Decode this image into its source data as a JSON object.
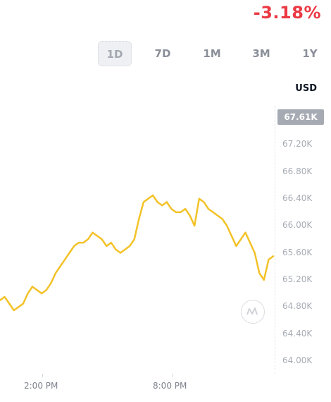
{
  "change_percent": "-3.18%",
  "colors": {
    "negative": "#ea3943",
    "line": "#f3c227",
    "muted": "#a7acb4"
  },
  "tabs": [
    {
      "label": "1D",
      "active": true
    },
    {
      "label": "7D",
      "active": false
    },
    {
      "label": "1M",
      "active": false
    },
    {
      "label": "3M",
      "active": false
    },
    {
      "label": "1Y",
      "active": false
    }
  ],
  "currency": "USD",
  "current_price_label": "67.61K",
  "y_axis_labels": [
    "67.20K",
    "66.80K",
    "66.40K",
    "66.00K",
    "65.60K",
    "65.20K",
    "64.80K",
    "64.40K",
    "64.00K"
  ],
  "x_axis_labels": [
    "2:00 PM",
    "8:00 PM"
  ],
  "watermark_icon": "coinmarketcap-logo-icon",
  "chart_data": {
    "type": "line",
    "title": "",
    "xlabel": "",
    "ylabel": "",
    "ylim": [
      63.9,
      67.65
    ],
    "series": [
      {
        "values": [
          64.9,
          64.95,
          64.85,
          64.75,
          64.8,
          64.85,
          65.0,
          65.1,
          65.05,
          65.0,
          65.05,
          65.15,
          65.3,
          65.4,
          65.5,
          65.6,
          65.7,
          65.75,
          65.75,
          65.8,
          65.9,
          65.85,
          65.8,
          65.7,
          65.75,
          65.65,
          65.6,
          65.65,
          65.7,
          65.8,
          66.1,
          66.35,
          66.4,
          66.45,
          66.35,
          66.3,
          66.35,
          66.25,
          66.2,
          66.2,
          66.25,
          66.15,
          66.0,
          66.4,
          66.35,
          66.25,
          66.2,
          66.15,
          66.1,
          66.0,
          65.85,
          65.7,
          65.8,
          65.9,
          65.75,
          65.6,
          65.3,
          65.2,
          65.5,
          65.55
        ]
      }
    ]
  }
}
